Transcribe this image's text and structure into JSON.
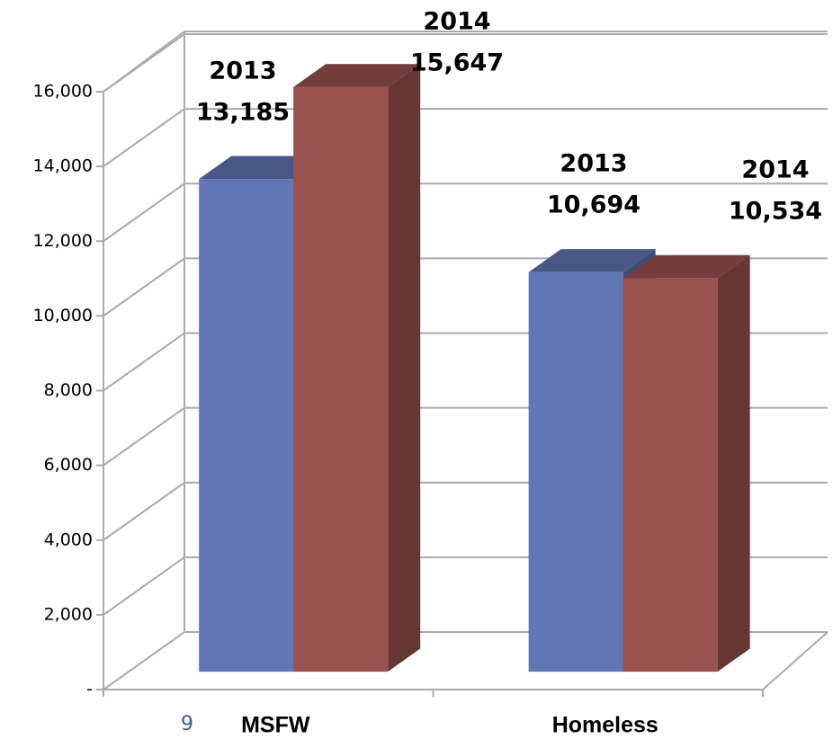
{
  "chart_data": {
    "type": "bar3d",
    "categories": [
      "MSFW",
      "Homeless"
    ],
    "series": [
      {
        "name": "2013",
        "color": "#6176b5",
        "values": [
          13185,
          10694
        ],
        "value_labels": [
          "13,185",
          "10,694"
        ]
      },
      {
        "name": "2014",
        "color": "#9a5251",
        "values": [
          15647,
          10534
        ],
        "value_labels": [
          "15,647",
          "10,534"
        ]
      }
    ],
    "ylim": [
      0,
      16000
    ],
    "yticks": [
      {
        "value": 0,
        "label": "-"
      },
      {
        "value": 2000,
        "label": "2,000"
      },
      {
        "value": 4000,
        "label": "4,000"
      },
      {
        "value": 6000,
        "label": "6,000"
      },
      {
        "value": 8000,
        "label": "8,000"
      },
      {
        "value": 10000,
        "label": "10,000"
      },
      {
        "value": 12000,
        "label": "12,000"
      },
      {
        "value": 14000,
        "label": "14,000"
      },
      {
        "value": 16000,
        "label": "16,000"
      }
    ],
    "grid": true
  },
  "page_number": "9"
}
